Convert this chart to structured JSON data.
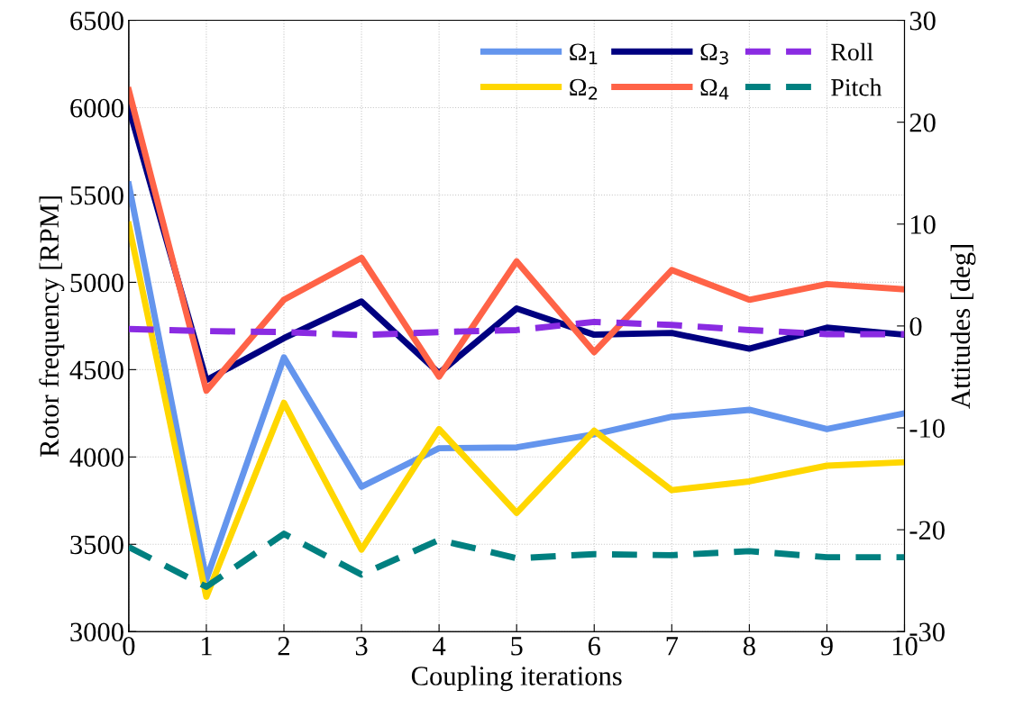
{
  "chart_data": {
    "type": "line",
    "xlabel": "Coupling iterations",
    "ylabel": "Rotor frequency [RPM]",
    "y2label": "Attitudes [deg]",
    "x": [
      0,
      1,
      2,
      3,
      4,
      5,
      6,
      7,
      8,
      9,
      10
    ],
    "series": [
      {
        "name": "Ω$_{1}$",
        "color": "#6495ed",
        "line_style": "solid",
        "values": [
          5560,
          3300,
          4570,
          3830,
          4050,
          4055,
          4130,
          4230,
          4270,
          4160,
          4250
        ]
      },
      {
        "name": "Ω$_{2}$",
        "color": "#ffd700",
        "line_style": "solid",
        "values": [
          5330,
          3200,
          4310,
          3470,
          4160,
          3680,
          4150,
          3810,
          3860,
          3950,
          3970
        ]
      },
      {
        "name": "Ω$_{3}$",
        "color": "#000080",
        "line_style": "solid",
        "values": [
          6000,
          4440,
          4680,
          4890,
          4480,
          4850,
          4700,
          4710,
          4620,
          4740,
          4700
        ]
      },
      {
        "name": "Ω$_{4}$",
        "color": "#ff6347",
        "line_style": "solid",
        "values": [
          6100,
          4380,
          4900,
          5140,
          4460,
          5120,
          4600,
          5070,
          4900,
          4990,
          4960
        ]
      },
      {
        "name": "Roll",
        "color": "#8a2be2",
        "line_style": "dashed",
        "axis": "y2",
        "values": [
          -0.3,
          -0.5,
          -0.6,
          -0.9,
          -0.6,
          -0.4,
          0.4,
          0.1,
          -0.4,
          -0.8,
          -0.8
        ]
      },
      {
        "name": "Pitch",
        "color": "#008080",
        "line_style": "dashed",
        "axis": "y2",
        "values": [
          -21.7,
          -25.6,
          -20.4,
          -24.4,
          -21.0,
          -22.8,
          -22.4,
          -22.5,
          -22.1,
          -22.7,
          -22.7
        ]
      }
    ],
    "xlim": [
      0,
      10
    ],
    "xticks": [
      0,
      1,
      2,
      3,
      4,
      5,
      6,
      7,
      8,
      9,
      10
    ],
    "ylim": [
      3000,
      6500
    ],
    "yticks": [
      3000,
      3500,
      4000,
      4500,
      5000,
      5500,
      6000,
      6500
    ],
    "y2lim": [
      -30,
      30
    ],
    "y2ticks": [
      -30,
      -20,
      -10,
      0,
      10,
      20,
      30
    ],
    "grid": true,
    "legend": "top right",
    "marker": "none"
  }
}
